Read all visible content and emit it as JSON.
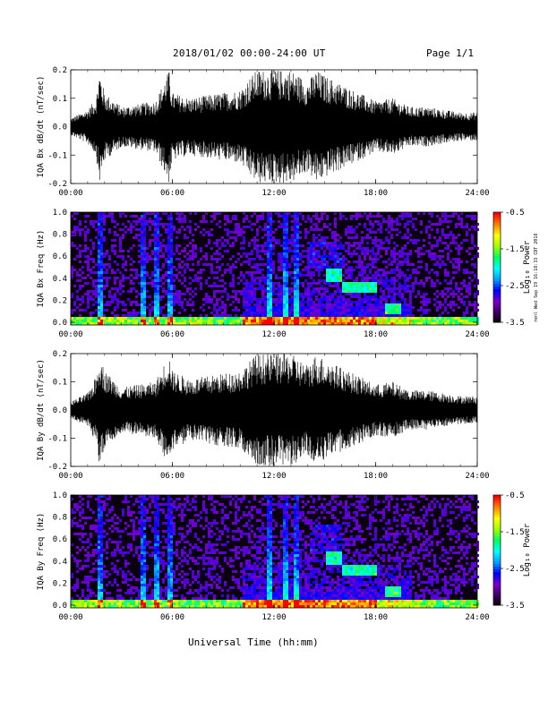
{
  "header": {
    "title": "2018/01/02  00:00-24:00 UT",
    "page": "Page 1/1"
  },
  "footer": {
    "xlabel": "Universal Time (hh:mm)",
    "stamp": "renl Wed Sep 19 16:18:33 CDT 2018"
  },
  "colorbar": {
    "label": "Log₁₀ Power",
    "ticks": [
      "-0.5",
      "-1.5",
      "-2.5",
      "-3.5"
    ],
    "range": [
      -3.5,
      -0.5
    ],
    "colors": [
      "#000000",
      "#3a0060",
      "#7a00c8",
      "#0000ff",
      "#00a0ff",
      "#00ffff",
      "#00ff60",
      "#a0ff00",
      "#ffff00",
      "#ff8000",
      "#ff0000"
    ]
  },
  "chart_data": [
    {
      "type": "line",
      "title": "",
      "xlabel": "",
      "ylabel": "IQA Bx dB/dt (nT/sec)",
      "xlim": [
        "00:00",
        "24:00"
      ],
      "ylim": [
        -0.2,
        0.2
      ],
      "x_ticks": [
        "00:00",
        "06:00",
        "12:00",
        "18:00",
        "24:00"
      ],
      "y_ticks": [
        "0.2",
        "0.1",
        "0.0",
        "-0.1",
        "-0.2"
      ],
      "series": [
        {
          "x_hours": [
            0,
            1,
            1.5,
            1.7,
            2,
            3,
            4,
            5,
            5.8,
            6,
            7,
            8,
            9,
            10,
            10.5,
            11,
            12,
            12.5,
            13,
            14,
            14.5,
            15,
            16,
            17,
            18,
            19,
            20,
            21,
            22,
            23,
            24
          ],
          "amplitude": [
            0.03,
            0.06,
            0.1,
            0.2,
            0.12,
            0.07,
            0.08,
            0.09,
            0.2,
            0.12,
            0.1,
            0.11,
            0.12,
            0.13,
            0.17,
            0.2,
            0.2,
            0.2,
            0.2,
            0.16,
            0.2,
            0.18,
            0.15,
            0.12,
            0.09,
            0.1,
            0.07,
            0.07,
            0.06,
            0.05,
            0.05
          ]
        }
      ]
    },
    {
      "type": "heatmap",
      "title": "",
      "xlabel": "",
      "ylabel": "IQA Bx Freq (Hz)",
      "xlim": [
        "00:00",
        "24:00"
      ],
      "ylim": [
        0.0,
        1.0
      ],
      "x_ticks": [
        "00:00",
        "06:00",
        "12:00",
        "18:00",
        "24:00"
      ],
      "y_ticks": [
        "1.0",
        "0.8",
        "0.6",
        "0.4",
        "0.2",
        "0.0"
      ],
      "colorbar_label": "Log₁₀ Power",
      "colorbar_range": [
        -3.5,
        -0.5
      ],
      "features": {
        "bright_band_top_hz": 0.05,
        "spikes_hours": [
          1.6,
          4.2,
          5.0,
          5.8,
          11.7,
          12.6,
          13.2
        ],
        "pc1_bursts": [
          {
            "start_hours": 15.0,
            "end_hours": 16.0,
            "freq_hz": 0.45
          },
          {
            "start_hours": 16.0,
            "end_hours": 18.0,
            "freq_hz": 0.35
          },
          {
            "start_hours": 18.5,
            "end_hours": 19.5,
            "freq_hz": 0.15
          }
        ]
      }
    },
    {
      "type": "line",
      "title": "",
      "xlabel": "",
      "ylabel": "IQA By dB/dt (nT/sec)",
      "xlim": [
        "00:00",
        "24:00"
      ],
      "ylim": [
        -0.2,
        0.2
      ],
      "x_ticks": [
        "00:00",
        "06:00",
        "12:00",
        "18:00",
        "24:00"
      ],
      "y_ticks": [
        "0.2",
        "0.1",
        "0.0",
        "-0.1",
        "-0.2"
      ],
      "series": [
        {
          "x_hours": [
            0,
            1,
            1.5,
            1.7,
            2,
            3,
            4,
            5,
            5.8,
            6,
            7,
            8,
            9,
            10,
            10.5,
            11,
            12,
            12.5,
            13,
            14,
            14.5,
            15,
            16,
            17,
            18,
            19,
            20,
            21,
            22,
            23,
            24
          ],
          "amplitude": [
            0.03,
            0.06,
            0.12,
            0.2,
            0.14,
            0.08,
            0.09,
            0.1,
            0.2,
            0.14,
            0.11,
            0.12,
            0.13,
            0.14,
            0.17,
            0.2,
            0.2,
            0.2,
            0.2,
            0.16,
            0.2,
            0.18,
            0.15,
            0.12,
            0.09,
            0.1,
            0.07,
            0.07,
            0.06,
            0.05,
            0.05
          ]
        }
      ]
    },
    {
      "type": "heatmap",
      "title": "",
      "xlabel": "Universal Time (hh:mm)",
      "ylabel": "IQA By Freq (Hz)",
      "xlim": [
        "00:00",
        "24:00"
      ],
      "ylim": [
        0.0,
        1.0
      ],
      "x_ticks": [
        "00:00",
        "06:00",
        "12:00",
        "18:00",
        "24:00"
      ],
      "y_ticks": [
        "1.0",
        "0.8",
        "0.6",
        "0.4",
        "0.2",
        "0.0"
      ],
      "colorbar_label": "Log₁₀ Power",
      "colorbar_range": [
        -3.5,
        -0.5
      ],
      "features": {
        "bright_band_top_hz": 0.05,
        "spikes_hours": [
          1.6,
          4.2,
          5.0,
          5.8,
          11.7,
          12.6,
          13.2
        ],
        "pc1_bursts": [
          {
            "start_hours": 15.0,
            "end_hours": 16.0,
            "freq_hz": 0.45
          },
          {
            "start_hours": 16.0,
            "end_hours": 18.0,
            "freq_hz": 0.35
          },
          {
            "start_hours": 18.5,
            "end_hours": 19.5,
            "freq_hz": 0.15
          }
        ]
      }
    }
  ]
}
